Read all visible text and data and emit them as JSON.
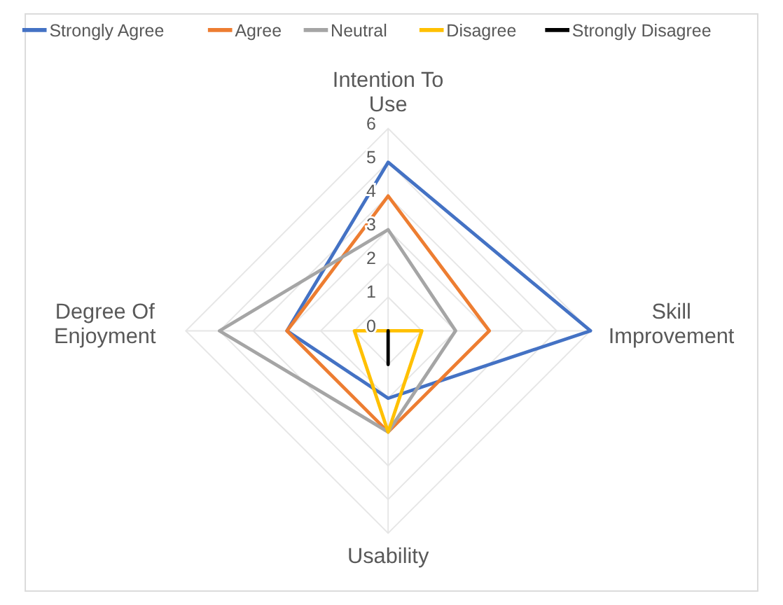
{
  "chart_data": {
    "type": "radar",
    "categories": [
      "Intention To Use",
      "Skill Improvement",
      "Usability",
      "Degree Of Enjoyment"
    ],
    "series": [
      {
        "name": "Strongly Agree",
        "color": "#4472c4",
        "values": [
          5,
          6,
          2,
          3
        ]
      },
      {
        "name": "Agree",
        "color": "#ed7d31",
        "values": [
          4,
          3,
          3,
          3
        ]
      },
      {
        "name": "Neutral",
        "color": "#a5a5a5",
        "values": [
          3,
          2,
          3,
          5
        ]
      },
      {
        "name": "Disagree",
        "color": "#ffc000",
        "values": [
          0,
          1,
          3,
          1
        ]
      },
      {
        "name": "Strongly Disagree",
        "color": "#000000",
        "values": [
          0,
          0,
          1,
          0
        ]
      }
    ],
    "ylim": [
      0,
      6
    ],
    "yticks": [
      0,
      1,
      2,
      3,
      4,
      5,
      6
    ],
    "grid": true,
    "legend": "top"
  }
}
